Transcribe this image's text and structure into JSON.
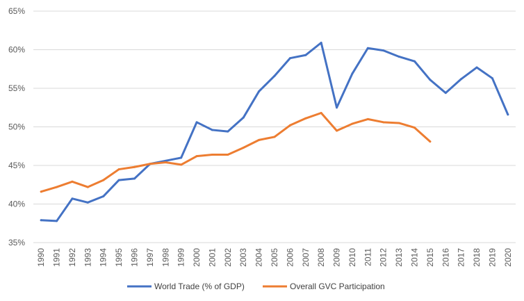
{
  "chart_data": {
    "type": "line",
    "title": "",
    "xlabel": "",
    "ylabel": "",
    "ylim": [
      35,
      65
    ],
    "y_ticks": [
      "35%",
      "40%",
      "45%",
      "50%",
      "55%",
      "60%",
      "65%"
    ],
    "y_tick_values": [
      35,
      40,
      45,
      50,
      55,
      60,
      65
    ],
    "grid": "horizontal",
    "legend_position": "bottom",
    "categories": [
      "1990",
      "1991",
      "1992",
      "1993",
      "1994",
      "1995",
      "1996",
      "1997",
      "1998",
      "1999",
      "2000",
      "2001",
      "2002",
      "2003",
      "2004",
      "2005",
      "2006",
      "2007",
      "2008",
      "2009",
      "2010",
      "2011",
      "2012",
      "2013",
      "2014",
      "2015",
      "2016",
      "2017",
      "2018",
      "2019",
      "2020"
    ],
    "series": [
      {
        "name": "World Trade (% of GDP)",
        "color": "#4472C4",
        "values": [
          37.9,
          37.8,
          40.7,
          40.2,
          41.0,
          43.1,
          43.3,
          45.2,
          45.6,
          46.0,
          50.6,
          49.6,
          49.4,
          51.2,
          54.6,
          56.6,
          58.9,
          59.3,
          60.9,
          52.5,
          56.9,
          60.2,
          59.9,
          59.1,
          58.5,
          56.1,
          54.4,
          56.2,
          57.7,
          56.3,
          51.6
        ]
      },
      {
        "name": "Overall GVC Participation",
        "color": "#ED7D31",
        "values": [
          41.6,
          42.2,
          42.9,
          42.2,
          43.1,
          44.5,
          44.8,
          45.2,
          45.4,
          45.1,
          46.2,
          46.4,
          46.4,
          47.3,
          48.3,
          48.7,
          50.2,
          51.1,
          51.8,
          49.5,
          50.4,
          51.0,
          50.6,
          50.5,
          49.9,
          48.1,
          null,
          null,
          null,
          null,
          null
        ]
      }
    ]
  }
}
